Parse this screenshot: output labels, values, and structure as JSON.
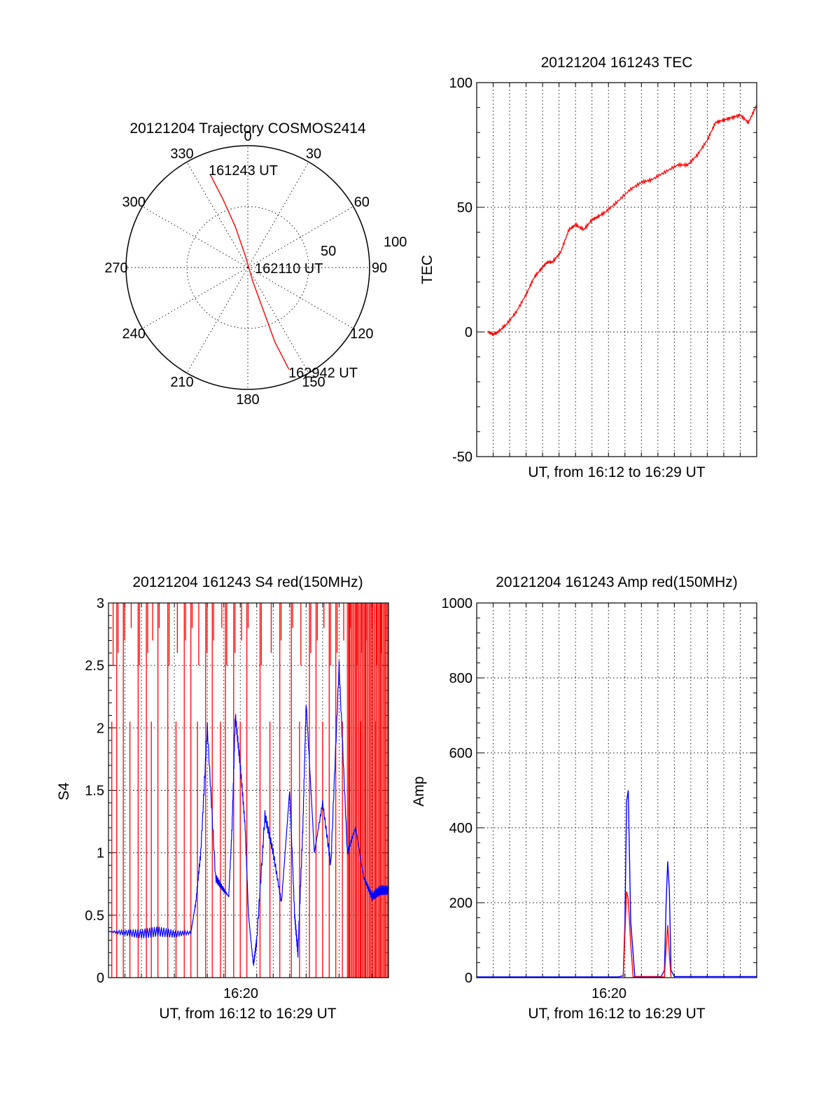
{
  "chart_data": [
    {
      "id": "polar",
      "type": "scatter",
      "title": "20121204 Trajectory COSMOS2414",
      "azimuth_labels": [
        "0",
        "30",
        "60",
        "90",
        "120",
        "150",
        "180",
        "210",
        "240",
        "270",
        "300",
        "330"
      ],
      "radius_labels": [
        "50",
        "100"
      ],
      "radius_range": [
        0,
        100
      ],
      "grid": true,
      "track": {
        "color": "#ff0000",
        "points": [
          {
            "az": 338,
            "r": 82
          },
          {
            "az": 340,
            "r": 60
          },
          {
            "az": 343,
            "r": 35
          },
          {
            "az": 348,
            "r": 10
          },
          {
            "az": 160,
            "r": 12
          },
          {
            "az": 160,
            "r": 40
          },
          {
            "az": 160,
            "r": 65
          },
          {
            "az": 158,
            "r": 90
          }
        ]
      },
      "annotations": [
        {
          "text": "161243 UT",
          "az": 340,
          "r": 82
        },
        {
          "text": "162110 UT",
          "az": 90,
          "r": 2
        },
        {
          "text": "162942 UT",
          "az": 158,
          "r": 90
        }
      ]
    },
    {
      "id": "tec",
      "type": "line",
      "title": "20121204 161243 TEC",
      "xlabel": "UT, from 16:12 to 16:29 UT",
      "ylabel": "TEC",
      "ylim": [
        -50,
        100
      ],
      "yticks": [
        -50,
        0,
        50,
        100
      ],
      "xlim_minutes": [
        0,
        17
      ],
      "grid": true,
      "series": [
        {
          "color": "#ff0000",
          "x": [
            0.7,
            1.0,
            1.3,
            1.8,
            2.4,
            3.0,
            3.5,
            4.0,
            4.3,
            4.6,
            5.1,
            5.6,
            6.0,
            6.5,
            7.0,
            7.3,
            7.8,
            8.5,
            9.3,
            10.0,
            10.6,
            11.4,
            12.2,
            12.8,
            13.4,
            14.0,
            14.5,
            15.0,
            15.5,
            16.0,
            16.5,
            17.0
          ],
          "y": [
            0,
            -1,
            0,
            3,
            8,
            15,
            22,
            26,
            28,
            28,
            32,
            41,
            43,
            41,
            45,
            46,
            48,
            52,
            57,
            60,
            61,
            64,
            67,
            67,
            71,
            77,
            84,
            85,
            86,
            87,
            84,
            91
          ]
        }
      ]
    },
    {
      "id": "s4",
      "type": "line",
      "title": "20121204 161243 S4 red(150MHz)",
      "xlabel": "UT, from 16:12 to 16:29 UT",
      "ylabel": "S4",
      "ylim": [
        0,
        3
      ],
      "yticks": [
        0,
        0.5,
        1,
        1.5,
        2,
        2.5,
        3
      ],
      "xticks": [
        "16:20"
      ],
      "xlim_minutes": [
        0,
        17
      ],
      "grid": true,
      "series": [
        {
          "color": "#0000ff",
          "x": [
            0,
            1,
            2,
            3,
            4,
            5,
            5.3,
            5.6,
            6,
            6.5,
            7,
            7.3,
            7.5,
            7.7,
            8,
            8.3,
            8.5,
            8.8,
            9,
            9.5,
            10,
            10.5,
            11,
            11.3,
            11.5,
            11.8,
            12,
            12.5,
            13,
            13.5,
            14,
            14.5,
            15,
            15.5,
            16,
            16.5,
            17
          ],
          "y": [
            0.37,
            0.36,
            0.35,
            0.37,
            0.35,
            0.36,
            0.6,
            1.0,
            2.0,
            0.8,
            0.7,
            0.65,
            1.2,
            2.1,
            1.7,
            1.2,
            0.5,
            0.1,
            0.3,
            1.3,
            1.0,
            0.6,
            1.5,
            0.5,
            0.2,
            1.2,
            2.2,
            1.0,
            1.4,
            0.9,
            2.5,
            1.0,
            1.2,
            0.8,
            0.65,
            0.7,
            0.7
          ]
        }
      ],
      "red_spikes": {
        "color": "#ff0000",
        "description": "dense red traces spanning 0 to 3",
        "x": [
          0.2,
          0.5,
          0.9,
          1.3,
          1.8,
          2.3,
          2.6,
          3.0,
          3.6,
          4.1,
          4.6,
          5.0,
          5.4,
          5.9,
          6.3,
          6.8,
          7.1,
          7.6,
          8.0,
          8.4,
          9.2,
          9.8,
          10.4,
          11.1,
          11.6,
          12.2,
          12.6,
          13.0,
          13.4,
          13.8,
          14.2,
          14.6,
          15.0,
          15.3,
          15.6,
          15.9,
          16.2,
          16.5,
          16.8
        ]
      }
    },
    {
      "id": "amp",
      "type": "line",
      "title": "20121204 161243 Amp red(150MHz)",
      "xlabel": "UT, from 16:12 to 16:29 UT",
      "ylabel": "Amp",
      "ylim": [
        0,
        1000
      ],
      "yticks": [
        0,
        200,
        400,
        600,
        800,
        1000
      ],
      "xticks": [
        "16:20"
      ],
      "xlim_minutes": [
        0,
        17
      ],
      "grid": true,
      "series": [
        {
          "color": "#0000ff",
          "x": [
            0,
            5,
            8.6,
            8.9,
            9.0,
            9.1,
            9.2,
            9.35,
            9.6,
            11.2,
            11.4,
            11.5,
            11.6,
            11.7,
            11.8,
            12.0,
            14,
            17
          ],
          "y": [
            2,
            2,
            2,
            5,
            150,
            470,
            500,
            150,
            3,
            3,
            20,
            200,
            310,
            230,
            20,
            3,
            3,
            3
          ]
        },
        {
          "color": "#ff0000",
          "x": [
            8.9,
            9.0,
            9.1,
            9.2,
            9.35,
            9.5,
            11.4,
            11.5,
            11.6,
            11.7,
            11.8
          ],
          "y": [
            2,
            120,
            230,
            210,
            90,
            2,
            2,
            80,
            140,
            60,
            2
          ]
        }
      ]
    }
  ]
}
